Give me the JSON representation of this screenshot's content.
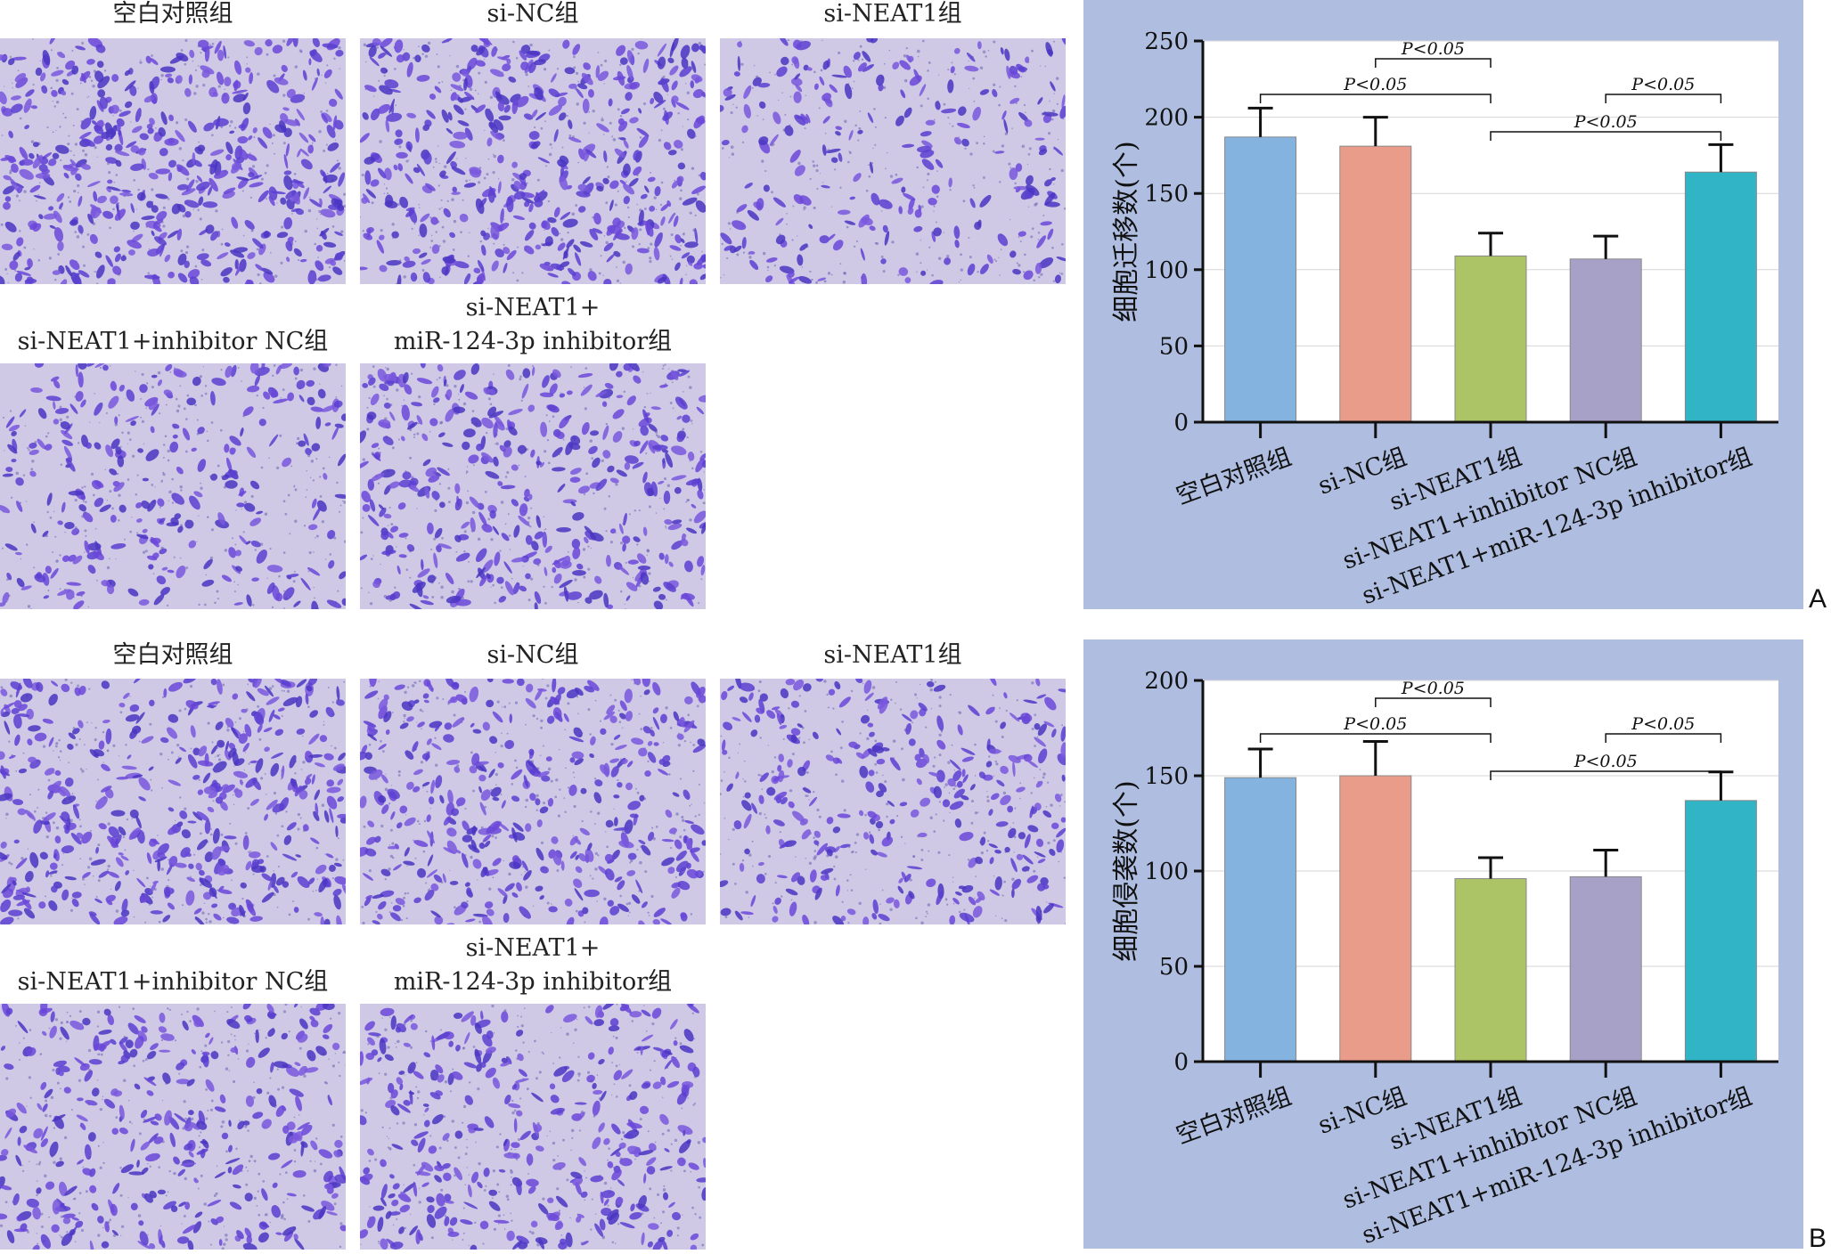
{
  "panels": [
    {
      "letter": "A",
      "micrograph_labels": [
        "空白对照组",
        "si-NC组",
        "si-NEAT1组",
        "si-NEAT1+inhibitor NC组",
        "si-NEAT1+",
        "miR-124-3p inhibitor组"
      ]
    },
    {
      "letter": "B",
      "micrograph_labels": [
        "空白对照组",
        "si-NC组",
        "si-NEAT1组",
        "si-NEAT1+inhibitor NC组",
        "si-NEAT1+",
        "miR-124-3p inhibitor组"
      ]
    }
  ],
  "chart_data": [
    {
      "type": "bar",
      "ylabel": "细胞迁移数(个)",
      "categories": [
        "空白对照组",
        "si-NC组",
        "si-NEAT1组",
        "si-NEAT1+inhibitor NC组",
        "si-NEAT1+miR-124-3p inhibitor组"
      ],
      "values": [
        187,
        181,
        109,
        107,
        164
      ],
      "errors": [
        19,
        19,
        15,
        15,
        18
      ],
      "colors": [
        "#84b3df",
        "#e99c8a",
        "#adc466",
        "#a7a1c8",
        "#31b5c6"
      ],
      "ylim": [
        0,
        250
      ],
      "yticks": [
        0,
        50,
        100,
        150,
        200,
        250
      ],
      "grid": true,
      "significance": [
        {
          "from": 1,
          "to": 2,
          "label": "P<0.05",
          "level": 3
        },
        {
          "from": 0,
          "to": 2,
          "label": "P<0.05",
          "level": 2
        },
        {
          "from": 3,
          "to": 4,
          "label": "P<0.05",
          "level": 2
        },
        {
          "from": 2,
          "to": 4,
          "label": "P<0.05",
          "level": 1
        }
      ]
    },
    {
      "type": "bar",
      "ylabel": "细胞侵袭数(个)",
      "categories": [
        "空白对照组",
        "si-NC组",
        "si-NEAT1组",
        "si-NEAT1+inhibitor NC组",
        "si-NEAT1+miR-124-3p inhibitor组"
      ],
      "values": [
        149,
        150,
        96,
        97,
        137
      ],
      "errors": [
        15,
        18,
        11,
        14,
        15
      ],
      "colors": [
        "#84b3df",
        "#e99c8a",
        "#adc466",
        "#a7a1c8",
        "#31b5c6"
      ],
      "ylim": [
        0,
        200
      ],
      "yticks": [
        0,
        50,
        100,
        150,
        200
      ],
      "grid": true,
      "significance": [
        {
          "from": 1,
          "to": 2,
          "label": "P<0.05",
          "level": 3
        },
        {
          "from": 0,
          "to": 2,
          "label": "P<0.05",
          "level": 2
        },
        {
          "from": 3,
          "to": 4,
          "label": "P<0.05",
          "level": 2
        },
        {
          "from": 2,
          "to": 4,
          "label": "P<0.05",
          "level": 1
        }
      ]
    }
  ]
}
